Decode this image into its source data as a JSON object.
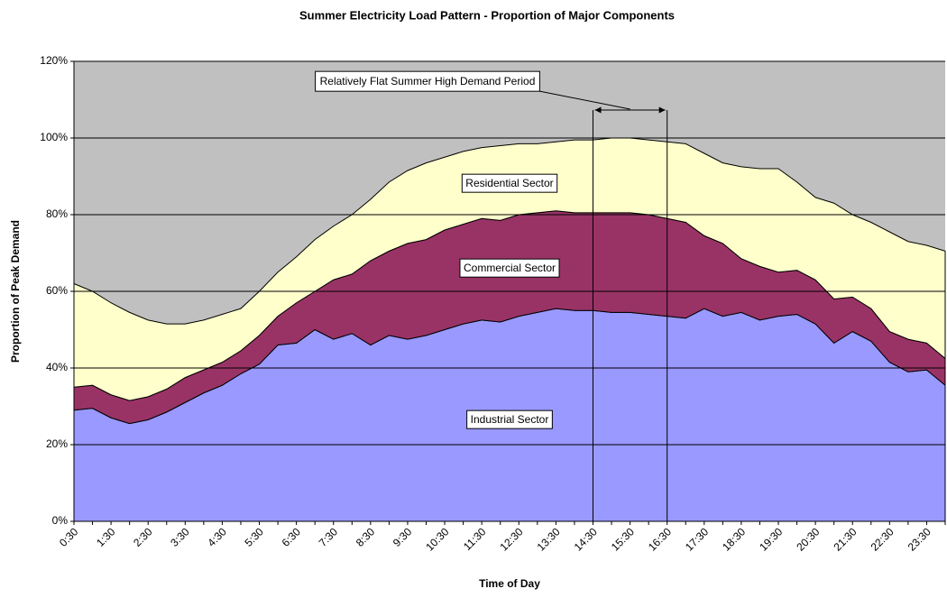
{
  "chart_data": {
    "type": "stacked_area",
    "title": "Summer Electricity Load Pattern - Proportion of Major Components",
    "x_label": "Time of Day",
    "y_label": "Proportion of Peak Demand",
    "categories": [
      "0:30",
      null,
      "1:30",
      null,
      "2:30",
      null,
      "3:30",
      null,
      "4:30",
      null,
      "5:30",
      null,
      "6:30",
      null,
      "7:30",
      null,
      "8:30",
      null,
      "9:30",
      null,
      "10:30",
      null,
      "11:30",
      null,
      "12:30",
      null,
      "13:30",
      null,
      "14:30",
      null,
      "15:30",
      null,
      "16:30",
      null,
      "17:30",
      null,
      "18:30",
      null,
      "19:30",
      null,
      "20:30",
      null,
      "21:30",
      null,
      "22:30",
      null,
      "23:30",
      null
    ],
    "series": [
      {
        "name": "Industrial Sector",
        "color": "#9999ff",
        "values": [
          29,
          29.5,
          27,
          25.5,
          26.5,
          28.5,
          31,
          33.5,
          35.5,
          38.5,
          41,
          46,
          46.5,
          50,
          47.5,
          49,
          46,
          48.5,
          47.5,
          48.5,
          50,
          51.5,
          52.5,
          52,
          53.5,
          54.5,
          55.5,
          55,
          55,
          54.5,
          54.5,
          54,
          53.5,
          53,
          55.5,
          53.5,
          54.5,
          52.5,
          53.5,
          54,
          51.5,
          46.5,
          49.5,
          47,
          41.5,
          39,
          39.5,
          35.5
        ]
      },
      {
        "name": "Commercial Sector",
        "color": "#993366",
        "values": [
          6,
          6,
          6,
          6,
          6,
          6,
          6.5,
          6,
          6,
          6,
          7.5,
          7.5,
          10.5,
          10,
          15.5,
          15.5,
          22,
          22,
          25,
          25,
          26,
          26,
          26.5,
          26.5,
          26.5,
          26,
          25.5,
          25.5,
          25.5,
          26,
          26,
          26,
          25.5,
          25,
          19,
          19,
          14,
          14,
          11.5,
          11.5,
          11.5,
          11.5,
          9,
          8.5,
          8,
          8.5,
          7,
          7
        ]
      },
      {
        "name": "Residential Sector",
        "color": "#ffffcc",
        "values": [
          27,
          24.5,
          24,
          23,
          20,
          17,
          14,
          13,
          12.5,
          11,
          11.5,
          11.5,
          12,
          13.5,
          14,
          15.5,
          16,
          18,
          19,
          20,
          19,
          19,
          18.5,
          19.5,
          18.5,
          18,
          18,
          19,
          19,
          19.5,
          19.5,
          19.5,
          20,
          20.5,
          21.5,
          21,
          24,
          25.5,
          27,
          23,
          21.5,
          25,
          21.5,
          22.5,
          26,
          25.5,
          25.5,
          28
        ]
      }
    ],
    "ylim": [
      0,
      120
    ],
    "yticks": [
      {
        "value": 0,
        "label": "0%"
      },
      {
        "value": 20,
        "label": "20%"
      },
      {
        "value": 40,
        "label": "40%"
      },
      {
        "value": 60,
        "label": "60%"
      },
      {
        "value": 80,
        "label": "80%"
      },
      {
        "value": 100,
        "label": "100%"
      },
      {
        "value": 120,
        "label": "120%"
      }
    ],
    "grid": true,
    "background": "#c0c0c0",
    "annotation": {
      "text": "Relatively Flat Summer High Demand Period",
      "from": "14:30",
      "to": "16:30"
    }
  }
}
